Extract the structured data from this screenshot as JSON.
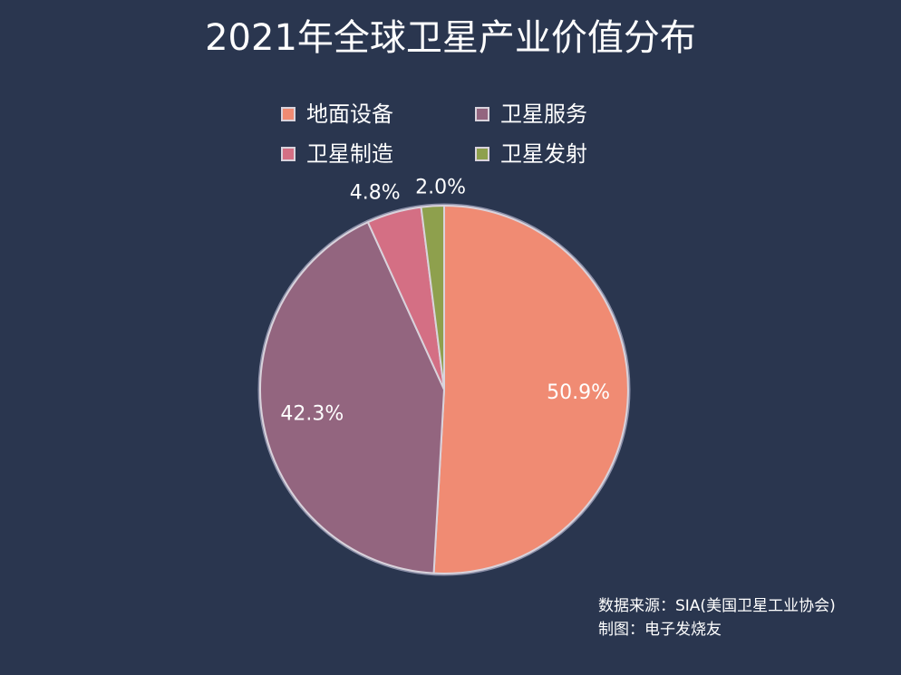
{
  "chart_data": {
    "type": "pie",
    "title": "2021年全球卫星产业价值分布",
    "legend_placement": "top",
    "slices": [
      {
        "name": "地面设备",
        "value": 50.9,
        "label": "50.9%",
        "color": "#f08b73"
      },
      {
        "name": "卫星服务",
        "value": 42.3,
        "label": "42.3%",
        "color": "#93657f"
      },
      {
        "name": "卫星制造",
        "value": 4.8,
        "label": "4.8%",
        "color": "#d46f84"
      },
      {
        "name": "卫星发射",
        "value": 2.0,
        "label": "2.0%",
        "color": "#8ea04d"
      }
    ],
    "background_color": "#2a364f",
    "edge_color": "#d9d3dc"
  },
  "footer": {
    "source": "数据来源：SIA(美国卫星工业协会)",
    "maker": "制图：电子发烧友"
  }
}
